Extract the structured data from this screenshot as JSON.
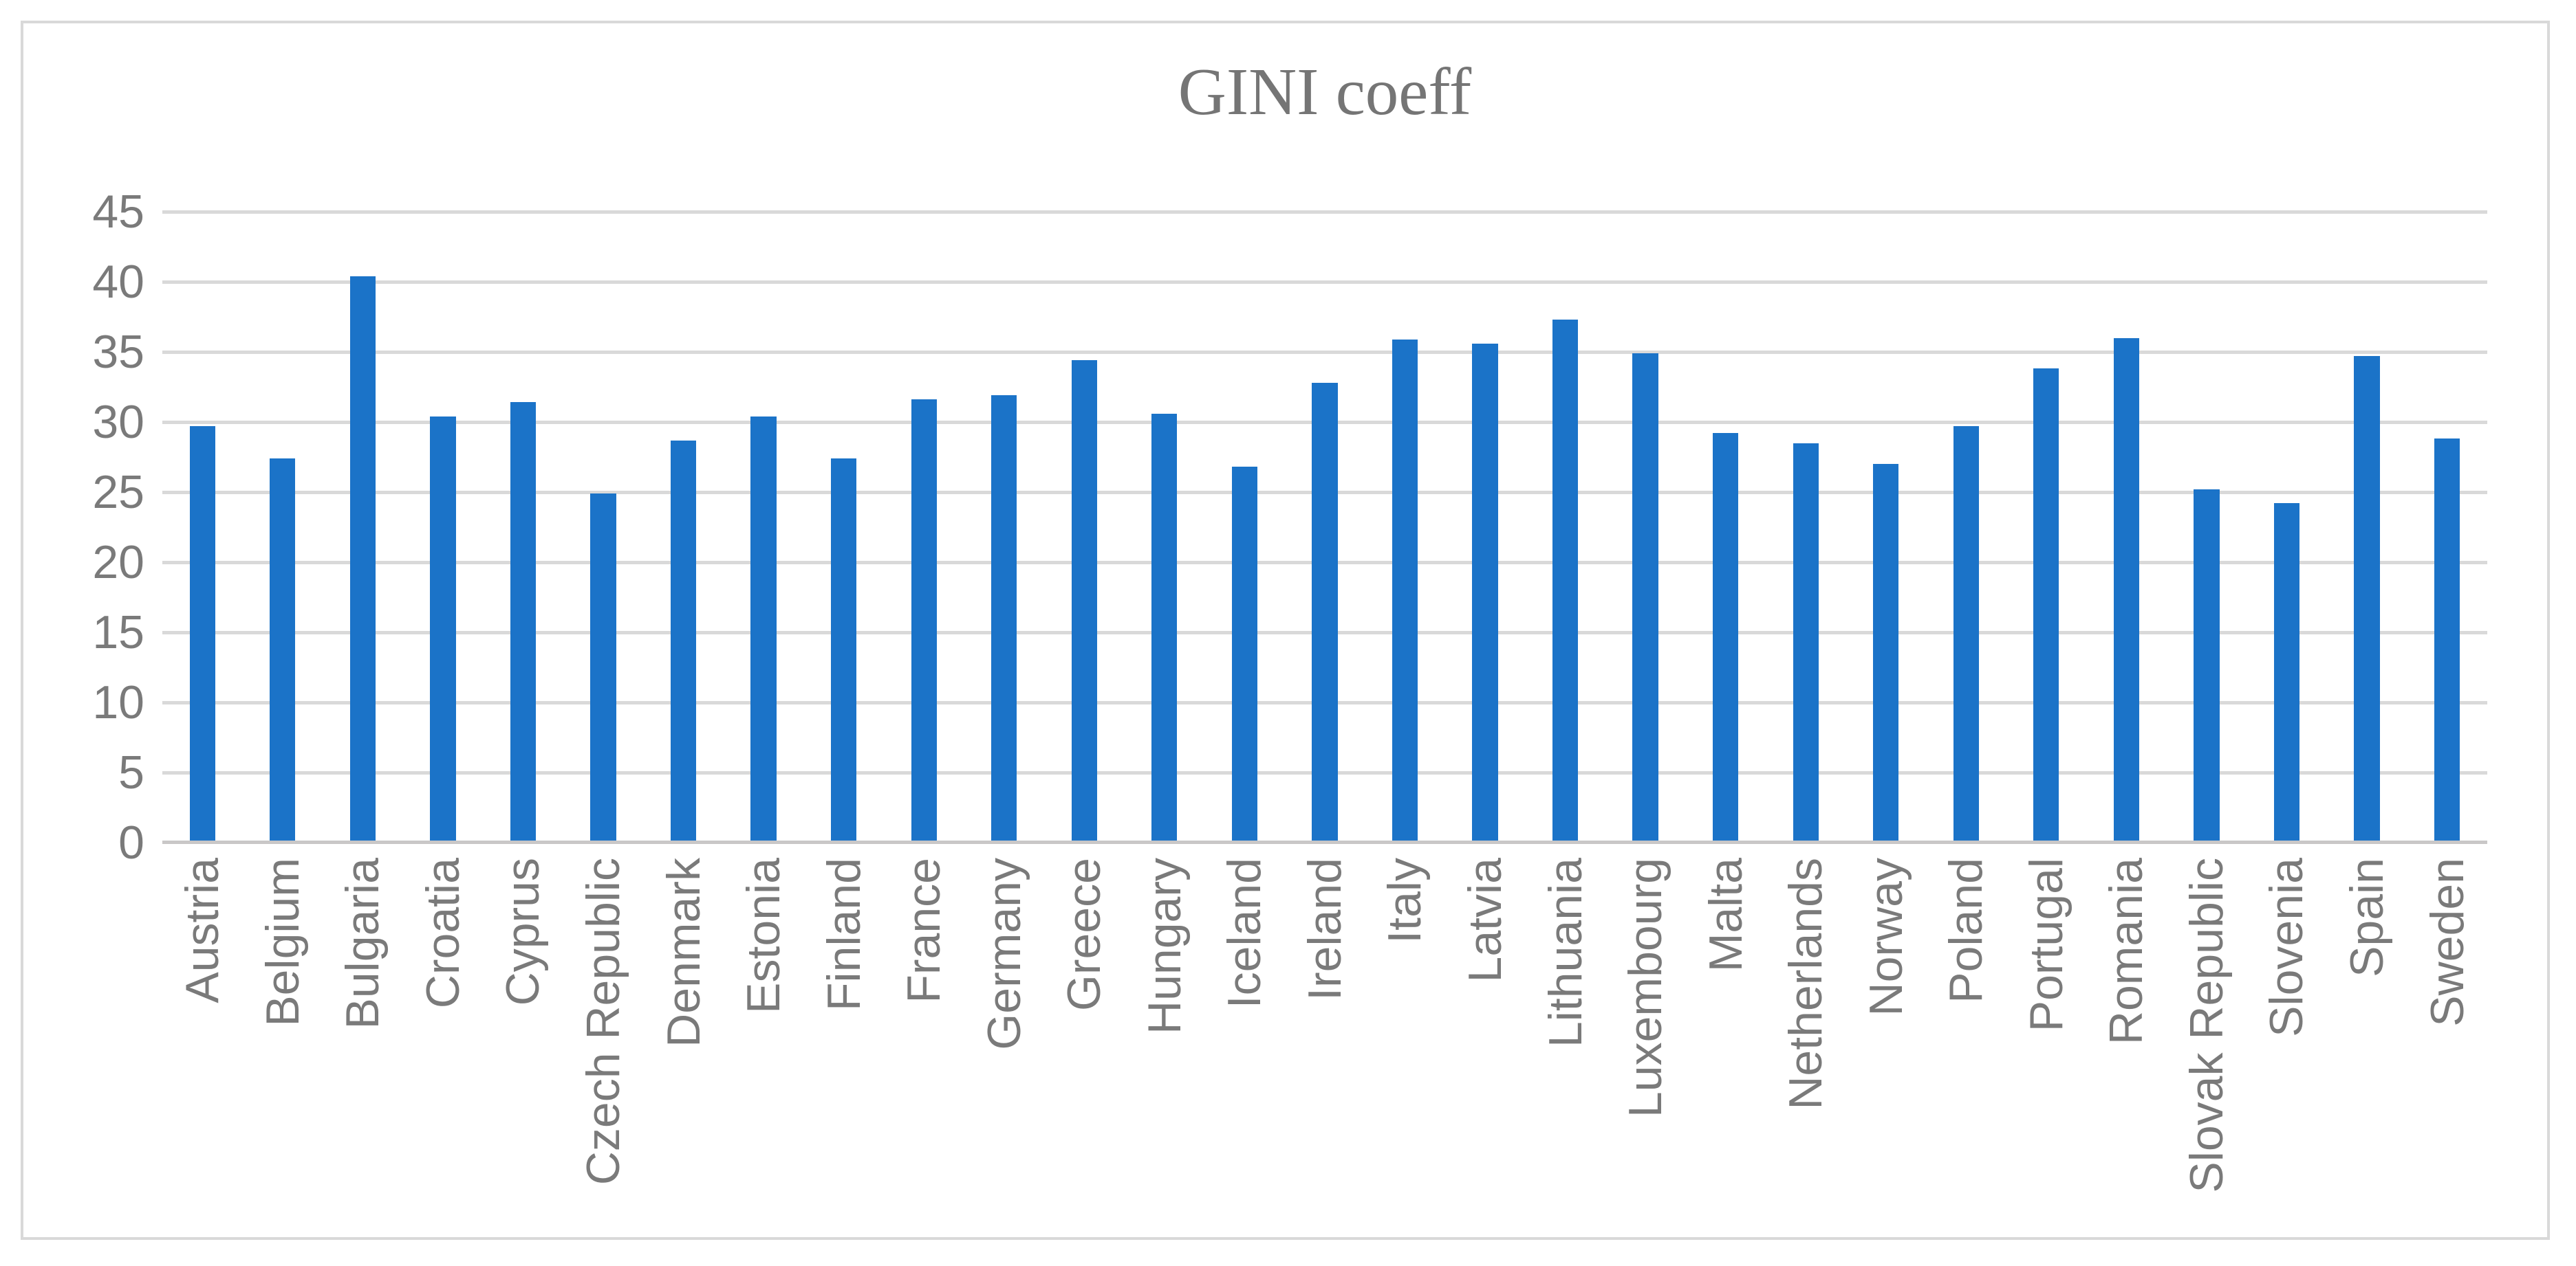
{
  "chart": {
    "frame_border_color": "#D9D9D9",
    "background_color": "#FFFFFF",
    "title_color": "#757575",
    "axis_label_color": "#7A7A7A",
    "gridline_color": "#D9D9D9",
    "axis_line_color": "#C9C7C7"
  },
  "chart_data": {
    "type": "bar",
    "title": "GINI coeff",
    "xlabel": "",
    "ylabel": "",
    "ylim": [
      0,
      45
    ],
    "ytick_step": 5,
    "ytick_labels": [
      "0",
      "5",
      "10",
      "15",
      "20",
      "25",
      "30",
      "35",
      "40",
      "45"
    ],
    "grid": "horizontal",
    "legend": "none",
    "bar_color": "#1B73C8",
    "categories": [
      "Austria",
      "Belgium",
      "Bulgaria",
      "Croatia",
      "Cyprus",
      "Czech Republic",
      "Denmark",
      "Estonia",
      "Finland",
      "France",
      "Germany",
      "Greece",
      "Hungary",
      "Iceland",
      "Ireland",
      "Italy",
      "Latvia",
      "Lithuania",
      "Luxembourg",
      "Malta",
      "Netherlands",
      "Norway",
      "Poland",
      "Portugal",
      "Romania",
      "Slovak Republic",
      "Slovenia",
      "Spain",
      "Sweden"
    ],
    "values": [
      29.7,
      27.4,
      40.4,
      30.4,
      31.4,
      24.9,
      28.7,
      30.4,
      27.4,
      31.6,
      31.9,
      34.4,
      30.6,
      26.8,
      32.8,
      35.9,
      35.6,
      37.3,
      34.9,
      29.2,
      28.5,
      27.0,
      29.7,
      33.8,
      36.0,
      25.2,
      24.2,
      34.7,
      28.8
    ]
  }
}
